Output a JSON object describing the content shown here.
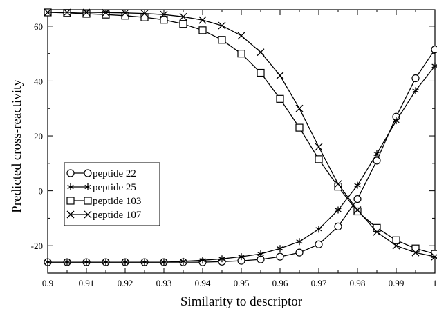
{
  "chart_data": {
    "type": "line",
    "title": "",
    "xlabel": "Similarity to descriptor",
    "ylabel": "Predicted cross-reactivity",
    "xlim": [
      0.9,
      1.0
    ],
    "ylim": [
      -30,
      66
    ],
    "x_ticks": [
      "0.9",
      "0.91",
      "0.92",
      "0.93",
      "0.94",
      "0.95",
      "0.96",
      "0.97",
      "0.98",
      "0.99",
      "1"
    ],
    "y_ticks": [
      "-20",
      "0",
      "20",
      "40",
      "60"
    ],
    "grid": false,
    "legend_position": "middle-left",
    "color": "#000000",
    "x": [
      0.9,
      0.905,
      0.91,
      0.915,
      0.92,
      0.925,
      0.93,
      0.935,
      0.94,
      0.945,
      0.95,
      0.955,
      0.96,
      0.965,
      0.97,
      0.975,
      0.98,
      0.985,
      0.99,
      0.995,
      1.0
    ],
    "series": [
      {
        "name": "peptide 22",
        "marker": "circle",
        "values": [
          -26,
          -26,
          -26,
          -26,
          -26,
          -26,
          -26,
          -26,
          -26,
          -25.8,
          -25.5,
          -25,
          -24,
          -22.5,
          -19.5,
          -13,
          -3,
          11,
          27,
          41,
          51.5
        ]
      },
      {
        "name": "peptide 25",
        "marker": "asterisk",
        "values": [
          -26,
          -26,
          -26,
          -26,
          -26,
          -26,
          -26,
          -25.7,
          -25.3,
          -24.8,
          -24,
          -23,
          -21,
          -18.5,
          -14,
          -7,
          2,
          13.5,
          25.5,
          36.5,
          45.5
        ]
      },
      {
        "name": "peptide 103",
        "marker": "square",
        "values": [
          65,
          64.8,
          64.5,
          64.2,
          63.8,
          63.2,
          62.3,
          60.8,
          58.5,
          55,
          50,
          43,
          33.5,
          23,
          11.5,
          1.5,
          -7.5,
          -13.5,
          -18,
          -21,
          -23
        ]
      },
      {
        "name": "peptide 107",
        "marker": "cross",
        "values": [
          65,
          65,
          65,
          64.9,
          64.8,
          64.6,
          64.2,
          63.4,
          62.2,
          60.2,
          56.5,
          50.5,
          42,
          30,
          16,
          2.5,
          -7,
          -15,
          -20,
          -22.5,
          -24
        ]
      }
    ]
  }
}
